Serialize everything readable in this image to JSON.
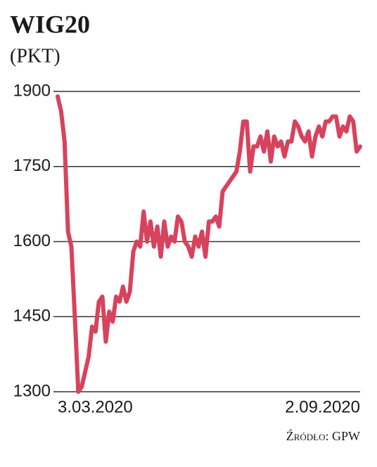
{
  "chart_data": {
    "type": "line",
    "title": "WIG20",
    "subtitle": "(PKT)",
    "source": "Źródło: GPW",
    "color": "#d8425c",
    "grid": true,
    "ylim": [
      1300,
      1900
    ],
    "yticks": [
      1300,
      1450,
      1600,
      1750,
      1900
    ],
    "categories": [
      "3.03.2020",
      null,
      null,
      null,
      null,
      null,
      null,
      null,
      null,
      null,
      null,
      null,
      null,
      null,
      null,
      null,
      null,
      null,
      null,
      null,
      null,
      null,
      null,
      null,
      null,
      null,
      null,
      null,
      null,
      null,
      null,
      null,
      null,
      null,
      null,
      null,
      null,
      null,
      null,
      null,
      null,
      null,
      null,
      null,
      null,
      null,
      null,
      null,
      null,
      null,
      null,
      null,
      null,
      null,
      null,
      null,
      null,
      null,
      null,
      null,
      null,
      null,
      null,
      null,
      null,
      null,
      null,
      null,
      null,
      null,
      null,
      null,
      null,
      null,
      null,
      null,
      null,
      null,
      null,
      null,
      null,
      null,
      null,
      null,
      null,
      null,
      null,
      null,
      "2.09.2020"
    ],
    "values": [
      1890,
      1860,
      1800,
      1620,
      1590,
      1450,
      1300,
      1310,
      1340,
      1370,
      1430,
      1420,
      1480,
      1490,
      1400,
      1460,
      1440,
      1490,
      1480,
      1510,
      1480,
      1500,
      1580,
      1600,
      1590,
      1660,
      1600,
      1640,
      1590,
      1630,
      1570,
      1640,
      1590,
      1610,
      1600,
      1650,
      1640,
      1600,
      1590,
      1570,
      1610,
      1590,
      1620,
      1570,
      1640,
      1640,
      1650,
      1630,
      1700,
      1710,
      1720,
      1730,
      1740,
      1780,
      1840,
      1840,
      1740,
      1790,
      1790,
      1810,
      1780,
      1820,
      1760,
      1810,
      1790,
      1800,
      1770,
      1800,
      1800,
      1840,
      1830,
      1810,
      1800,
      1820,
      1770,
      1810,
      1830,
      1810,
      1840,
      1840,
      1850,
      1850,
      1810,
      1830,
      1820,
      1850,
      1840,
      1780,
      1790
    ]
  }
}
